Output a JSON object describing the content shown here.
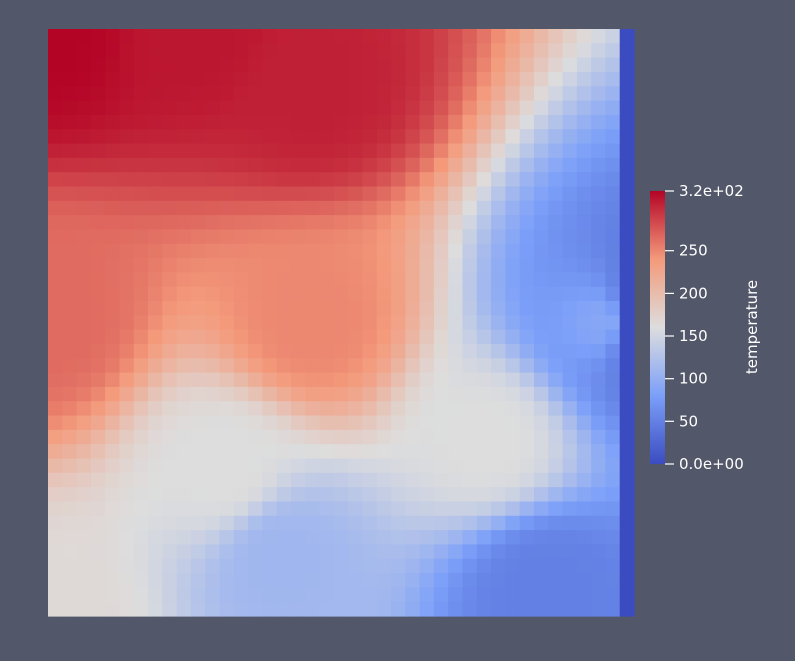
{
  "chart_data": {
    "type": "heatmap",
    "title": "",
    "xlabel": "",
    "ylabel": "",
    "grid": {
      "columns": 41,
      "rows": 41,
      "description_of_field": "temperature"
    },
    "field": {
      "name": "temperature",
      "min": 0,
      "max": 320,
      "colormap": "cool-to-warm",
      "key_values": [
        {
          "u": 0.0,
          "v": 0.0,
          "value": 165
        },
        {
          "u": 0.0,
          "v": 0.5,
          "value": 265
        },
        {
          "u": 0.0,
          "v": 1.0,
          "value": 320
        },
        {
          "u": 0.25,
          "v": 1.0,
          "value": 310
        },
        {
          "u": 0.45,
          "v": 0.9,
          "value": 305
        },
        {
          "u": 0.45,
          "v": 0.5,
          "value": 250
        },
        {
          "u": 0.3,
          "v": 0.25,
          "value": 160
        },
        {
          "u": 0.4,
          "v": 0.1,
          "value": 110
        },
        {
          "u": 0.75,
          "v": 0.3,
          "value": 160
        },
        {
          "u": 0.85,
          "v": 0.05,
          "value": 50
        },
        {
          "u": 0.95,
          "v": 0.5,
          "value": 90
        },
        {
          "u": 1.0,
          "v": 0.5,
          "value": 0
        }
      ]
    },
    "colorbar": {
      "label": "temperature",
      "range": [
        0,
        320
      ],
      "ticks": [
        {
          "value": 320,
          "label": "3.2e+02"
        },
        {
          "value": 250,
          "label": "250"
        },
        {
          "value": 200,
          "label": "200"
        },
        {
          "value": 150,
          "label": "150"
        },
        {
          "value": 100,
          "label": "100"
        },
        {
          "value": 50,
          "label": "50"
        },
        {
          "value": 0,
          "label": "0.0e+00"
        }
      ]
    }
  },
  "colors": {
    "background": "#525769",
    "cold": "#3b4cc0",
    "neutral": "#dddddd",
    "hot": "#b40426"
  }
}
